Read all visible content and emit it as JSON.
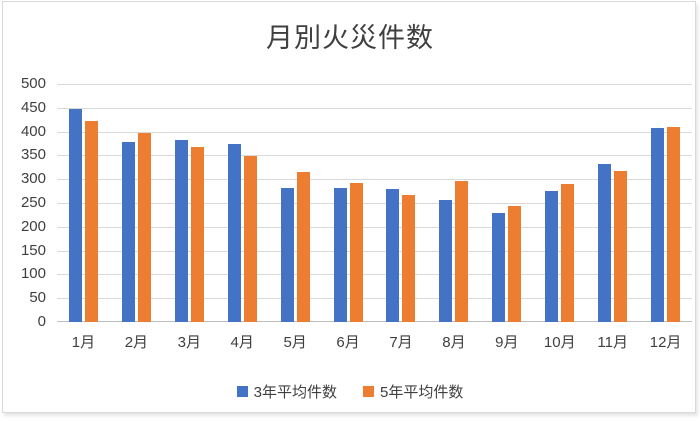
{
  "title": "月別火災件数",
  "colors": {
    "series1": "#4472C4",
    "series2": "#ED7D31",
    "gridline": "#D9D9D9",
    "axis_line": "#BFBFBF",
    "text": "#3F3F3F",
    "chart_border": "#D9D9D9",
    "background": "#FFFFFF"
  },
  "chart_data": {
    "type": "bar",
    "title": "月別火災件数",
    "categories": [
      "1月",
      "2月",
      "3月",
      "4月",
      "5月",
      "6月",
      "7月",
      "8月",
      "9月",
      "10月",
      "11月",
      "12月"
    ],
    "series": [
      {
        "name": "3年平均件数",
        "color": "#4472C4",
        "values": [
          448,
          378,
          383,
          374,
          282,
          282,
          280,
          256,
          229,
          276,
          331,
          408
        ]
      },
      {
        "name": "5年平均件数",
        "color": "#ED7D31",
        "values": [
          422,
          397,
          368,
          349,
          316,
          292,
          267,
          297,
          243,
          289,
          318,
          409
        ]
      }
    ],
    "xlabel": "",
    "ylabel": "",
    "ylim": [
      0,
      500
    ],
    "ytick_step": 50,
    "ytick_labels": [
      "0",
      "50",
      "100",
      "150",
      "200",
      "250",
      "300",
      "350",
      "400",
      "450",
      "500"
    ],
    "grid": true,
    "legend_position": "bottom"
  }
}
